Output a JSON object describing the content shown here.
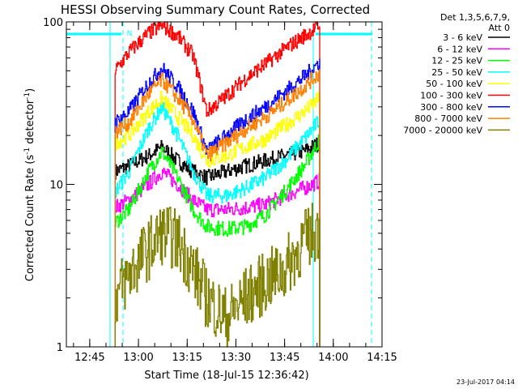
{
  "chart_data": {
    "type": "line",
    "title": "HESSI Observing Summary Count Rates, Corrected",
    "xlabel": "Start Time (18-Jul-15 12:36:42)",
    "ylabel_main": "Corrected Count Rate (s",
    "ylabel_sup1": "-1",
    "ylabel_mid": " detector",
    "ylabel_sup2": "-1",
    "ylabel_end": ")",
    "yscale": "log",
    "ylim": [
      1,
      100
    ],
    "xlim_minutes": [
      12.63,
      14.25
    ],
    "yticks": [
      {
        "value": 1,
        "label": "1"
      },
      {
        "value": 10,
        "label": "10"
      },
      {
        "value": 100,
        "label": "100"
      }
    ],
    "xticks": [
      {
        "value": 12.75,
        "label": "12:45"
      },
      {
        "value": 13.0,
        "label": "13:00"
      },
      {
        "value": 13.25,
        "label": "13:15"
      },
      {
        "value": 13.5,
        "label": "13:30"
      },
      {
        "value": 13.75,
        "label": "13:45"
      },
      {
        "value": 14.0,
        "label": "14:00"
      },
      {
        "value": 14.25,
        "label": "14:15"
      }
    ],
    "legend_header": [
      "Det 1,3,5,6,7,9,",
      "Att 0"
    ],
    "timestamp": "23-Jul-2017 04:14",
    "flag_label": "N",
    "colors": {
      "axes": "#000000",
      "flag": "#00ffff"
    },
    "series": [
      {
        "name": "3 - 6 keV",
        "color": "#000000",
        "x": [
          12.88,
          12.95,
          13.05,
          13.12,
          13.2,
          13.28,
          13.35,
          13.45,
          13.55,
          13.65,
          13.75,
          13.85,
          13.93
        ],
        "y": [
          12,
          13,
          15,
          17,
          14,
          12,
          11,
          12,
          13,
          14,
          15,
          16,
          18
        ]
      },
      {
        "name": "6 - 12 keV",
        "color": "#ff00ff",
        "x": [
          12.88,
          12.95,
          13.05,
          13.12,
          13.2,
          13.28,
          13.35,
          13.45,
          13.55,
          13.65,
          13.75,
          13.85,
          13.93
        ],
        "y": [
          7.2,
          8,
          10,
          12,
          10,
          8,
          7,
          7,
          7.2,
          7.5,
          8.5,
          9.5,
          10.5
        ]
      },
      {
        "name": "12 - 25 keV",
        "color": "#00ff00",
        "x": [
          12.88,
          12.95,
          13.05,
          13.12,
          13.2,
          13.28,
          13.35,
          13.45,
          13.55,
          13.65,
          13.75,
          13.85,
          13.93
        ],
        "y": [
          5.8,
          7,
          12,
          16,
          11,
          7,
          5.5,
          5.3,
          5.5,
          6.5,
          9,
          13,
          19
        ]
      },
      {
        "name": "25 - 50 keV",
        "color": "#00ffff",
        "x": [
          12.88,
          12.95,
          13.05,
          13.12,
          13.2,
          13.28,
          13.35,
          13.45,
          13.55,
          13.65,
          13.75,
          13.85,
          13.93
        ],
        "y": [
          9,
          12,
          22,
          30,
          20,
          12,
          8.5,
          8.5,
          9.5,
          11,
          14,
          19,
          25
        ]
      },
      {
        "name": "50 - 100 keV",
        "color": "#ffff00",
        "x": [
          12.88,
          12.95,
          13.05,
          13.12,
          13.2,
          13.28,
          13.35,
          13.45,
          13.55,
          13.65,
          13.75,
          13.85,
          13.93
        ],
        "y": [
          18,
          20,
          28,
          34,
          26,
          20,
          14,
          15,
          17,
          19,
          23,
          28,
          34
        ]
      },
      {
        "name": "100 - 300 keV",
        "color": "#ff0000",
        "x": [
          12.88,
          12.95,
          13.05,
          13.12,
          13.2,
          13.28,
          13.35,
          13.45,
          13.55,
          13.65,
          13.75,
          13.85,
          13.93
        ],
        "y": [
          50,
          65,
          85,
          95,
          82,
          62,
          28,
          35,
          45,
          55,
          68,
          82,
          95
        ]
      },
      {
        "name": "300 - 800 keV",
        "color": "#0000ff",
        "x": [
          12.88,
          12.95,
          13.05,
          13.12,
          13.2,
          13.28,
          13.35,
          13.45,
          13.55,
          13.65,
          13.75,
          13.85,
          13.93
        ],
        "y": [
          24,
          28,
          42,
          52,
          40,
          28,
          16,
          20,
          25,
          30,
          37,
          46,
          57
        ]
      },
      {
        "name": "800 - 7000 keV",
        "color": "#ff8000",
        "x": [
          12.88,
          12.95,
          13.05,
          13.12,
          13.2,
          13.28,
          13.35,
          13.45,
          13.55,
          13.65,
          13.75,
          13.85,
          13.93
        ],
        "y": [
          21,
          24,
          36,
          44,
          34,
          25,
          15,
          18,
          22,
          26,
          32,
          40,
          49
        ]
      },
      {
        "name": "7000 - 20000 keV",
        "color": "#808000",
        "x": [
          12.88,
          12.95,
          13.05,
          13.12,
          13.2,
          13.28,
          13.35,
          13.45,
          13.55,
          13.65,
          13.75,
          13.85,
          13.93
        ],
        "y": [
          2,
          2.8,
          4,
          5,
          4.5,
          3,
          2,
          1.5,
          2,
          2.5,
          3,
          4.5,
          5.5
        ]
      }
    ]
  }
}
